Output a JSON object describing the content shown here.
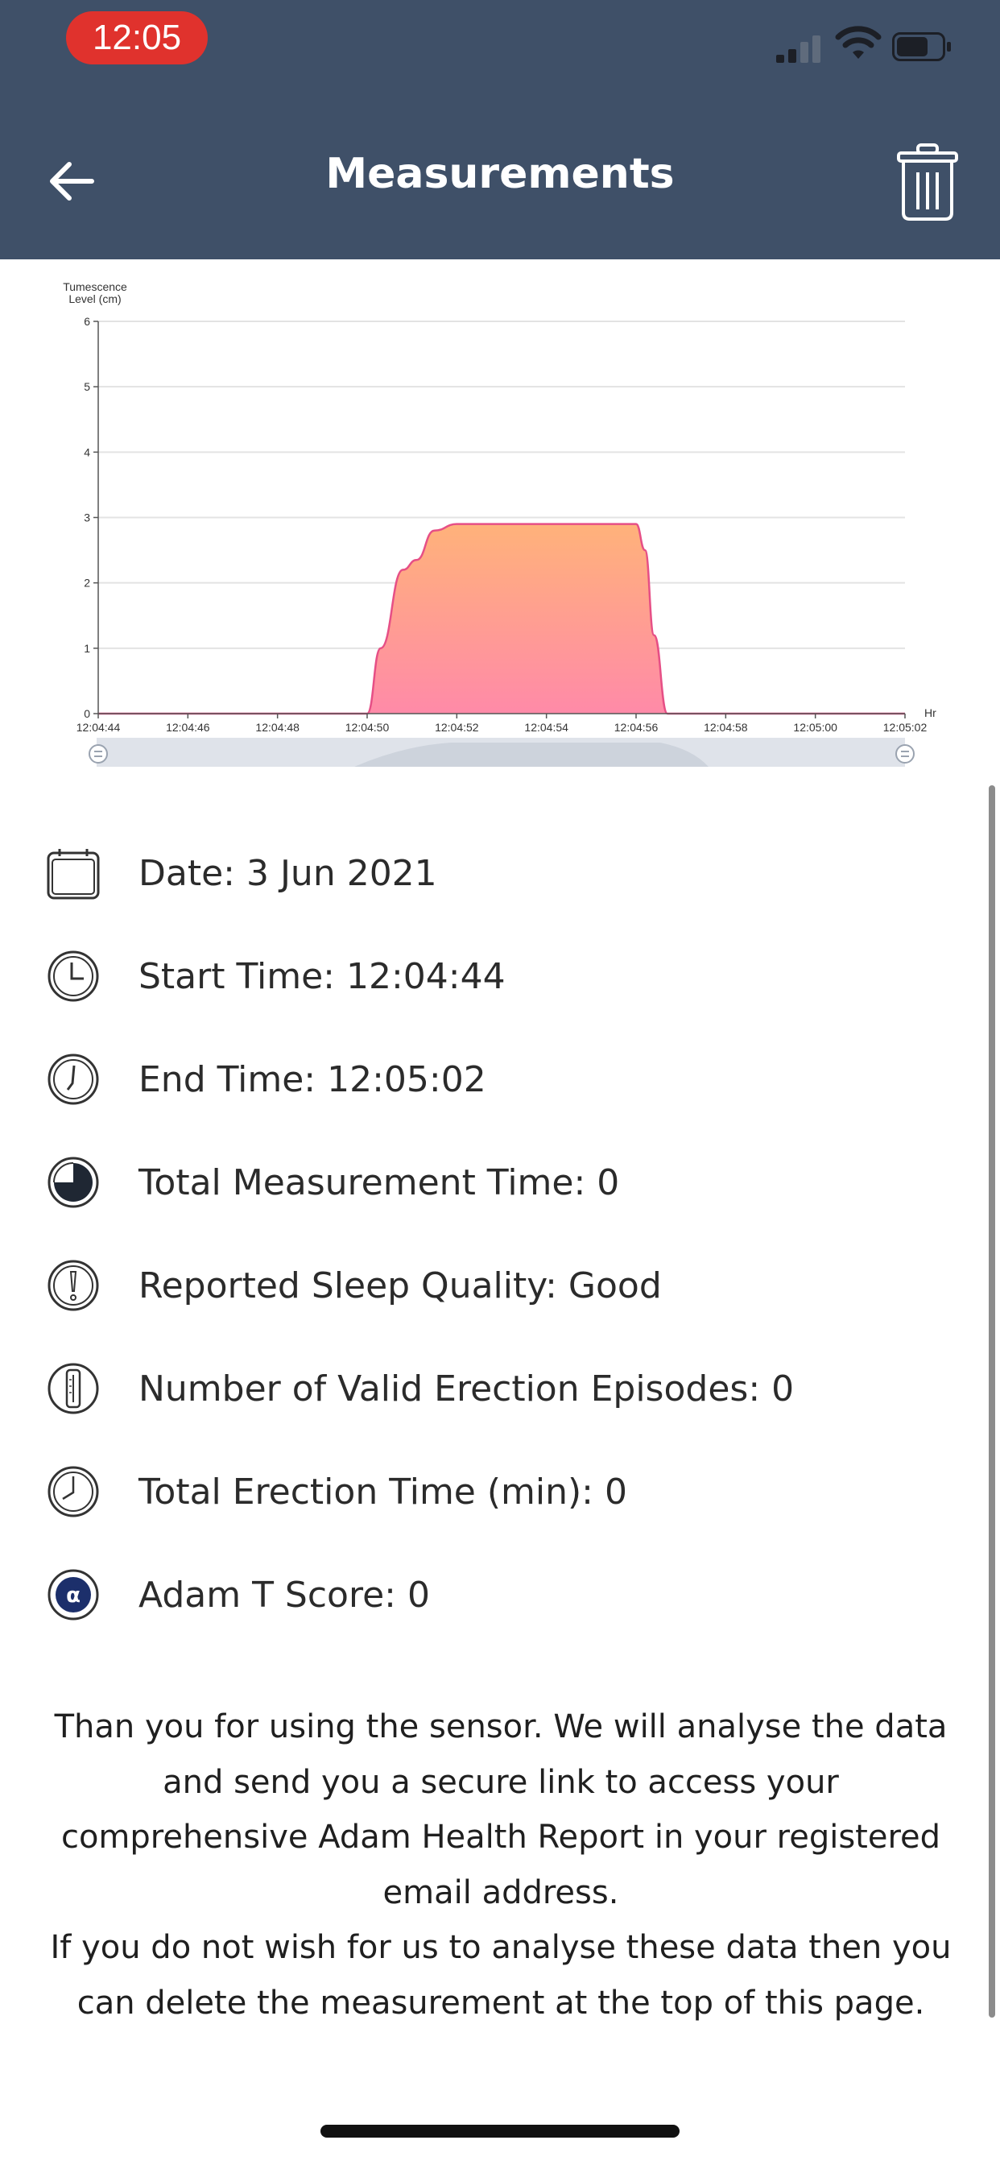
{
  "status_bar": {
    "time": "12:05"
  },
  "header": {
    "title": "Measurements"
  },
  "chart_data": {
    "type": "area",
    "ylabel": "Tumescence Level (cm)",
    "xlabel": "Hr",
    "ylim": [
      0,
      6
    ],
    "yticks": [
      "0",
      "1",
      "2",
      "3",
      "4",
      "5",
      "6"
    ],
    "xticks": [
      "12:04:44",
      "12:04:46",
      "12:04:48",
      "12:04:50",
      "12:04:52",
      "12:04:54",
      "12:04:56",
      "12:04:58",
      "12:05:00",
      "12:05:02"
    ],
    "x_seconds": [
      0,
      2,
      4,
      6,
      6.3,
      6.8,
      7.1,
      7.5,
      8.0,
      12.0,
      12.2,
      12.4,
      12.7,
      18
    ],
    "y": [
      0,
      0,
      0,
      0,
      1.0,
      2.2,
      2.35,
      2.8,
      2.9,
      2.9,
      2.5,
      1.2,
      0,
      0
    ],
    "grid": true,
    "colors": {
      "top": "#ffb27a",
      "bottom": "#ff8aa8",
      "stroke": "#e64f86"
    }
  },
  "details": {
    "date": "Date: 3 Jun 2021",
    "start_time": "Start Time: 12:04:44",
    "end_time": "End Time: 12:05:02",
    "total_measurement_time": "Total Measurement Time: 0",
    "sleep_quality": "Reported Sleep Quality: Good",
    "valid_episodes": "Number of Valid Erection Episodes: 0",
    "total_erection_time": "Total Erection Time (min): 0",
    "adam_t_score": "Adam T Score: 0"
  },
  "note": {
    "line1": "Than you for using the sensor. We will analyse the data and send you a secure link to access your comprehensive Adam Health Report in your registered email address.",
    "line2": "If you do not wish for us to analyse these data then you can delete the measurement at the top of this page."
  },
  "colors": {
    "header_bg": "#3f5068",
    "status_pill": "#e0322d",
    "alpha_badge": "#1c2f6b"
  }
}
